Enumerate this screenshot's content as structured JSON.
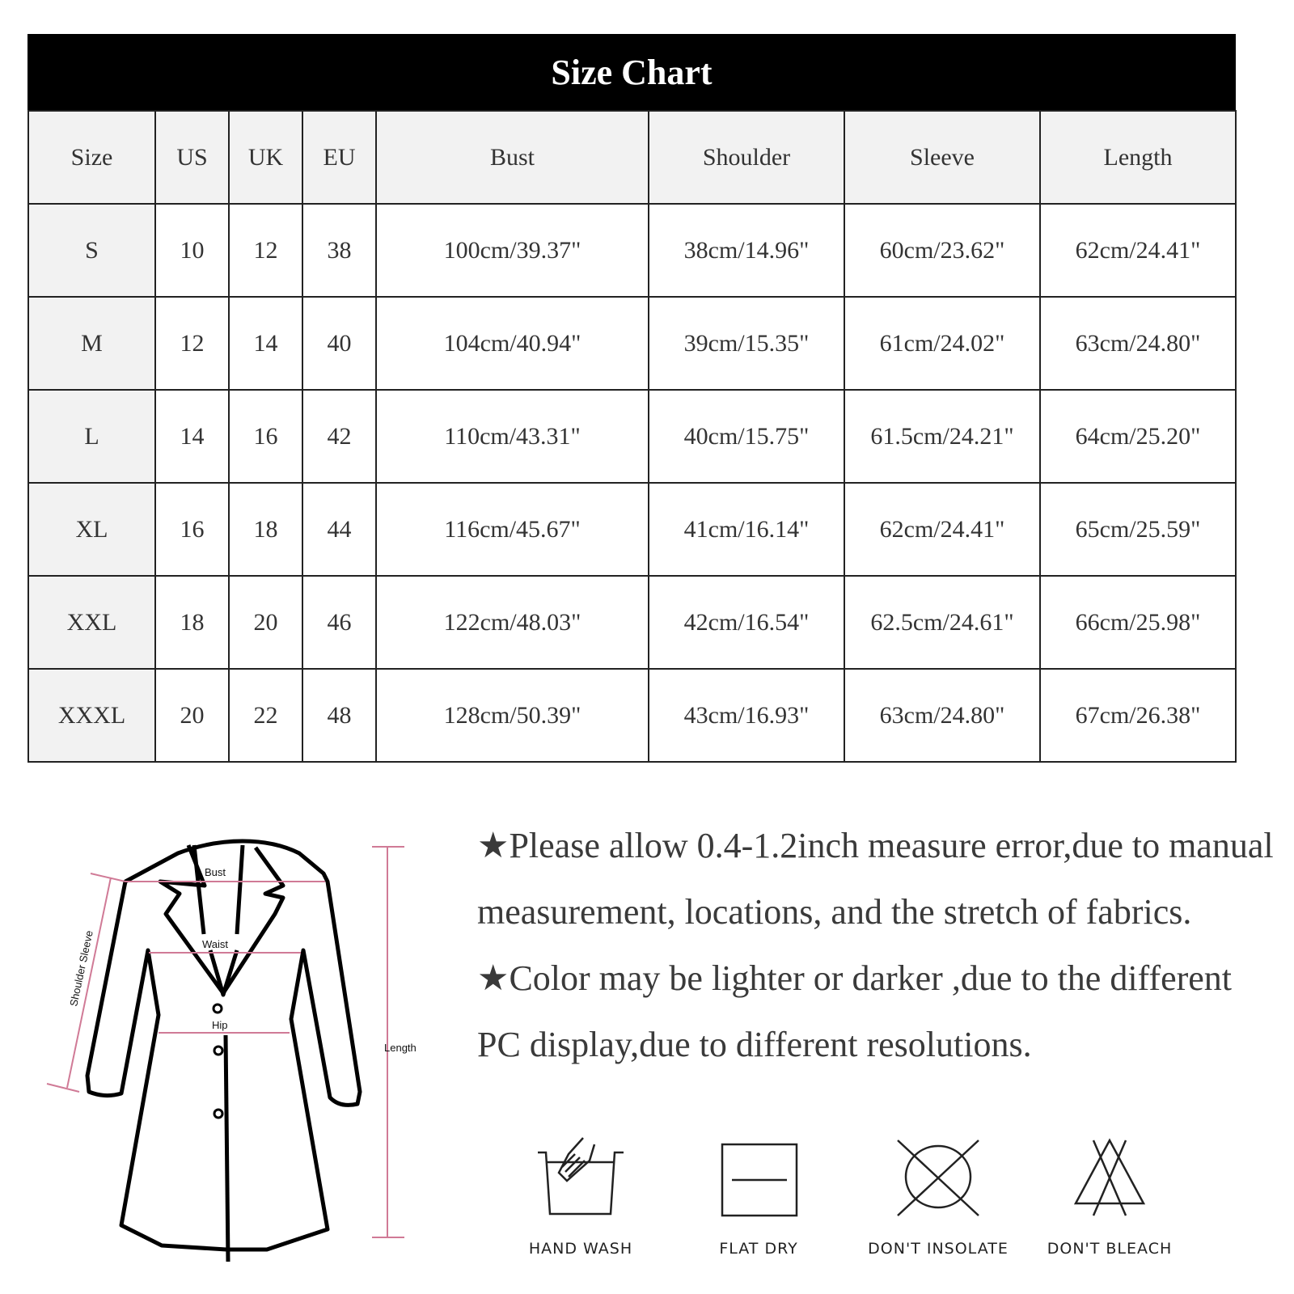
{
  "title": "Size Chart",
  "table": {
    "headers": [
      "Size",
      "US",
      "UK",
      "EU",
      "Bust",
      "Shoulder",
      "Sleeve",
      "Length"
    ],
    "rows": [
      [
        "S",
        "10",
        "12",
        "38",
        "100cm/39.37\"",
        "38cm/14.96\"",
        "60cm/23.62\"",
        "62cm/24.41\""
      ],
      [
        "M",
        "12",
        "14",
        "40",
        "104cm/40.94\"",
        "39cm/15.35\"",
        "61cm/24.02\"",
        "63cm/24.80\""
      ],
      [
        "L",
        "14",
        "16",
        "42",
        "110cm/43.31\"",
        "40cm/15.75\"",
        "61.5cm/24.21\"",
        "64cm/25.20\""
      ],
      [
        "XL",
        "16",
        "18",
        "44",
        "116cm/45.67\"",
        "41cm/16.14\"",
        "62cm/24.41\"",
        "65cm/25.59\""
      ],
      [
        "XXL",
        "18",
        "20",
        "46",
        "122cm/48.03\"",
        "42cm/16.54\"",
        "62.5cm/24.61\"",
        "66cm/25.98\""
      ],
      [
        "XXXL",
        "20",
        "22",
        "48",
        "128cm/50.39\"",
        "43cm/16.93\"",
        "63cm/24.80\"",
        "67cm/26.38\""
      ]
    ]
  },
  "diagram": {
    "labels": {
      "bust": "Bust",
      "waist": "Waist",
      "hip": "Hip",
      "shoulder_sleeve": "Shoulder Sleeve",
      "length": "Length"
    },
    "measure_line_color": "#d07a96"
  },
  "notes": [
    "★Please allow 0.4-1.2inch measure error,due to manual measurement, locations, and the stretch of fabrics.",
    "★Color may be lighter or darker ,due to the different PC display,due to different resolutions."
  ],
  "care": [
    {
      "icon": "hand-wash-icon",
      "label": "HAND WASH"
    },
    {
      "icon": "flat-dry-icon",
      "label": "FLAT  DRY"
    },
    {
      "icon": "dont-insolate-icon",
      "label": "DON'T INSOLATE"
    },
    {
      "icon": "dont-bleach-icon",
      "label": "DON'T BLEACH"
    }
  ]
}
